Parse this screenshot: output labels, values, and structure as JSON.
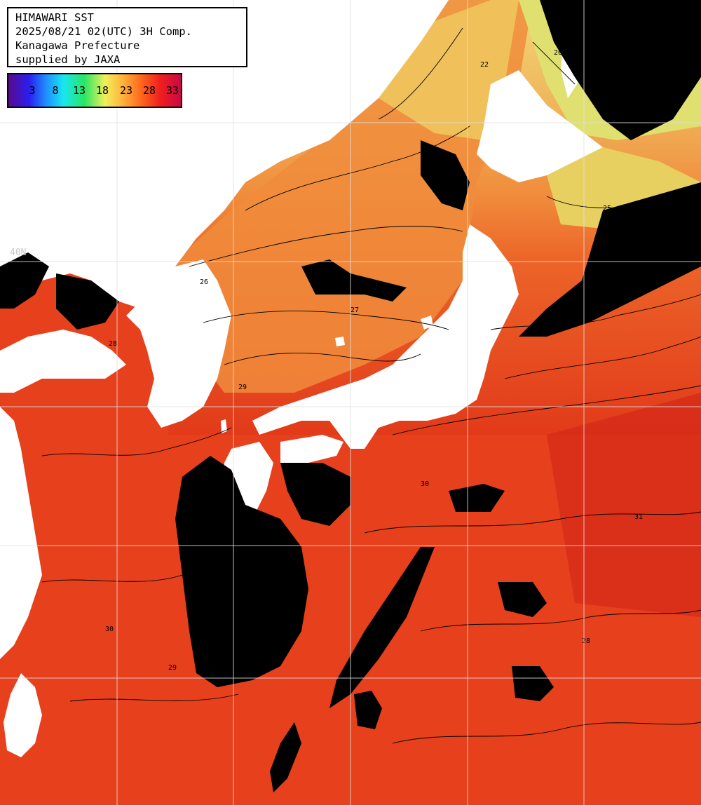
{
  "info": {
    "title": "HIMAWARI SST",
    "datetime": "2025/08/21 02(UTC) 3H Comp.",
    "region": "Kanagawa Prefecture",
    "credit": "supplied by JAXA"
  },
  "legend": {
    "labels": [
      "3",
      "8",
      "13",
      "18",
      "23",
      "28",
      "33"
    ],
    "colors": {
      "cold": "#5a0a8c",
      "mid": "#f0f05a",
      "warm": "#ff6e1e",
      "hot": "#c80a46"
    }
  },
  "grid": {
    "lat_label": "40N"
  },
  "map": {
    "land_color": "#ffffff",
    "cloud_color": "#000000",
    "sea_colors": {
      "cool_sea": "#f0c05a",
      "warm_sea": "#f08c3c",
      "hot_sea": "#e8401c",
      "hottest_sea": "#d42818"
    },
    "contour_labels": [
      "20",
      "22",
      "25",
      "26",
      "27",
      "28",
      "29",
      "30",
      "31"
    ]
  }
}
